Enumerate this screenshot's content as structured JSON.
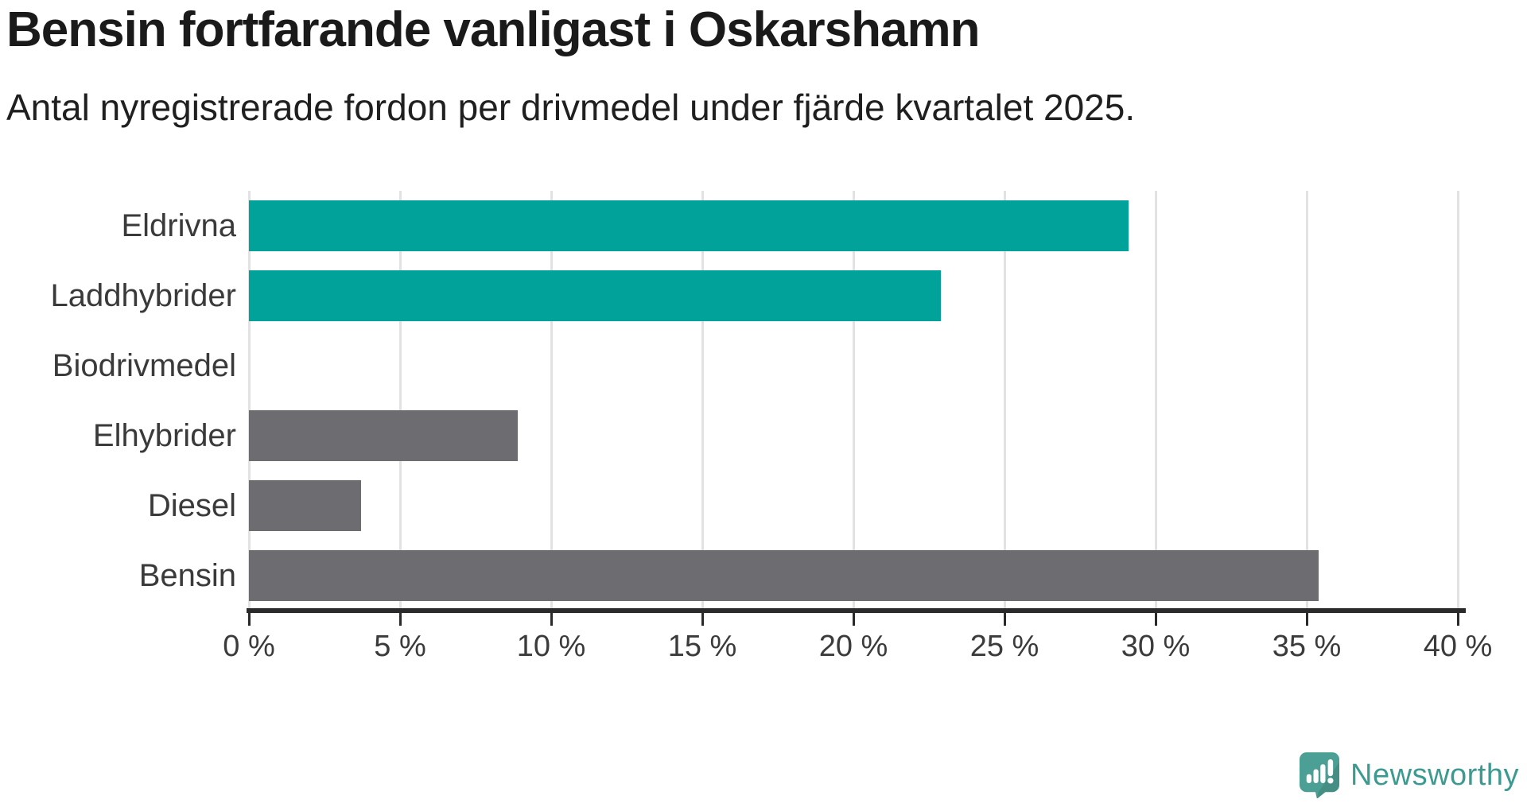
{
  "header": {
    "title": "Bensin fortfarande vanligast i Oskarshamn",
    "subtitle": "Antal nyregistrerade fordon per drivmedel under fjärde kvartalet 2025."
  },
  "chart_data": {
    "type": "bar",
    "orientation": "horizontal",
    "title": "Bensin fortfarande vanligast i Oskarshamn",
    "subtitle": "Antal nyregistrerade fordon per drivmedel under fjärde kvartalet 2025.",
    "categories": [
      "Eldrivna",
      "Laddhybrider",
      "Biodrivmedel",
      "Elhybrider",
      "Diesel",
      "Bensin"
    ],
    "values": [
      29.1,
      22.9,
      0,
      8.9,
      3.7,
      35.4
    ],
    "unit": "%",
    "xlim": [
      0,
      40
    ],
    "xticks": [
      0,
      5,
      10,
      15,
      20,
      25,
      30,
      35,
      40
    ],
    "xtick_labels": [
      "0 %",
      "5 %",
      "10 %",
      "15 %",
      "20 %",
      "25 %",
      "30 %",
      "35 %",
      "40 %"
    ],
    "grid": "vertical-only",
    "legend": "none",
    "bar_colors": [
      "#00a29a",
      "#00a29a",
      "#00a29a",
      "#6d6d71",
      "#6d6d71",
      "#6d6d71"
    ],
    "accent_color": "#00a29a",
    "neutral_color": "#6d6d71",
    "gridline_color": "#e2e2e2",
    "axis_color": "#2a2a2a",
    "label_color": "#3a3a3a"
  },
  "branding": {
    "logo_text": "Newsworthy",
    "logo_bubble_color": "#4c9f94",
    "logo_text_color": "#3d9a90"
  }
}
